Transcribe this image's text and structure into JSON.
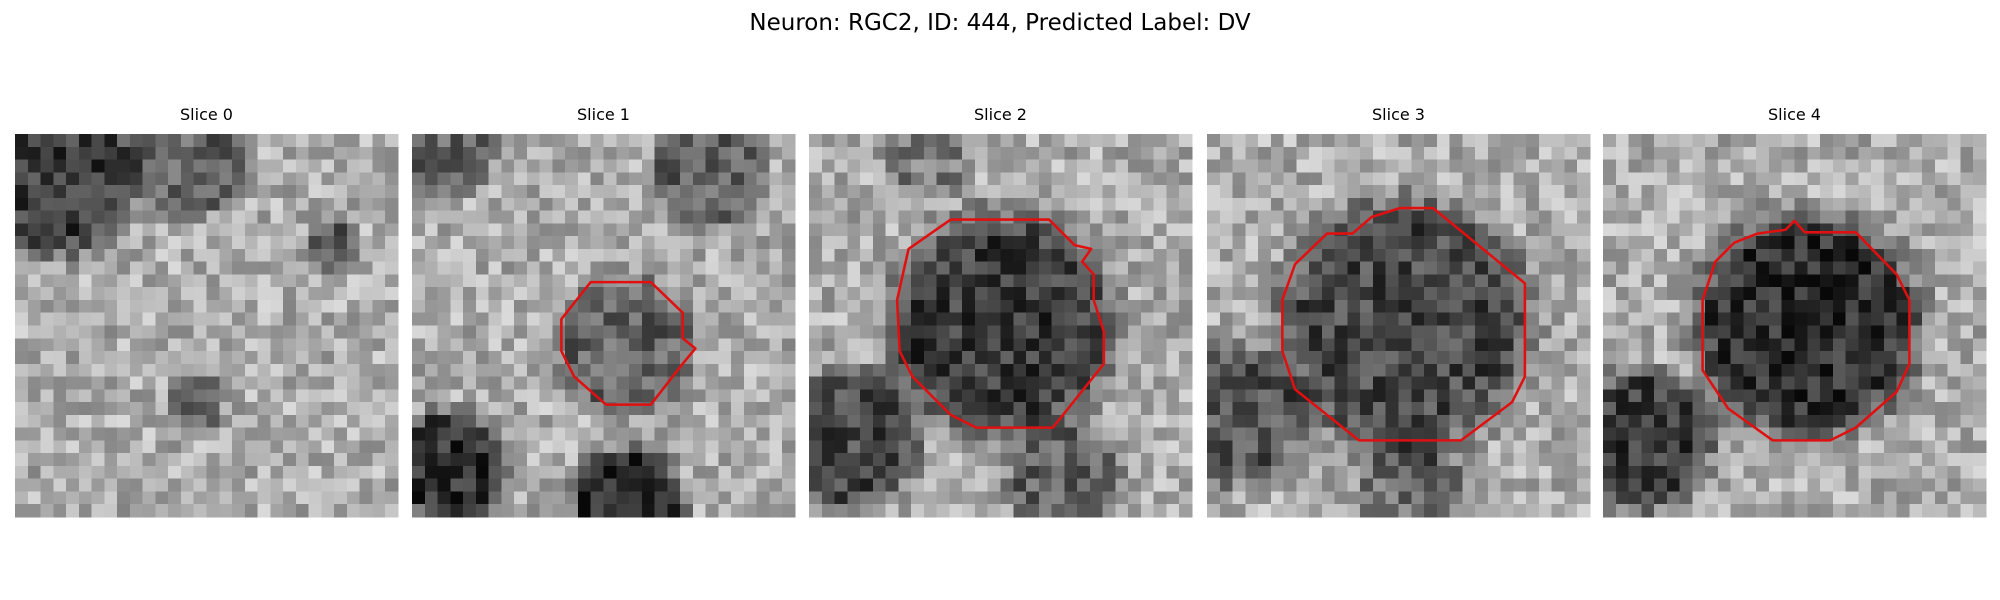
{
  "title": "Neuron: RGC2, ID: 444, Predicted Label: DV",
  "panels": [
    {
      "title": "Slice 0"
    },
    {
      "title": "Slice 1"
    },
    {
      "title": "Slice 2"
    },
    {
      "title": "Slice 3"
    },
    {
      "title": "Slice 4"
    }
  ]
}
